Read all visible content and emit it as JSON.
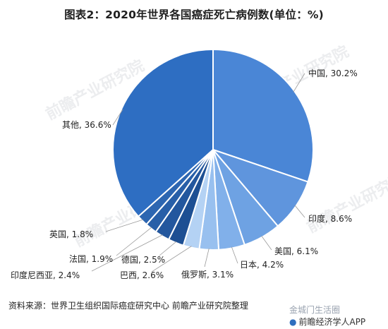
{
  "title": "图表2：2020年世界各国癌症死亡病例数(单位：%)",
  "source": "资料来源：世界卫生组织国际癌症研究中心 前瞻产业研究院整理",
  "watermark_text": "前瞻产业研究院",
  "bottom_watermark": "金城门生活圈",
  "app_label": "前瞻经济学人APP",
  "chart_data": {
    "type": "pie",
    "title": "图表2：2020年世界各国癌症死亡病例数(单位：%)",
    "slices": [
      {
        "label": "中国, 30.2%",
        "name": "中国",
        "value": 30.2,
        "color": "#4a86d6"
      },
      {
        "label": "印度, 8.6%",
        "name": "印度",
        "value": 8.6,
        "color": "#5f95dd"
      },
      {
        "label": "美国, 6.1%",
        "name": "美国",
        "value": 6.1,
        "color": "#6ea2e3"
      },
      {
        "label": "日本, 4.2%",
        "name": "日本",
        "value": 4.2,
        "color": "#81b0ea"
      },
      {
        "label": "俄罗斯, 3.1%",
        "name": "俄罗斯",
        "value": 3.1,
        "color": "#98c0ef"
      },
      {
        "label": "巴西, 2.6%",
        "name": "巴西",
        "value": 2.6,
        "color": "#b4d2f4"
      },
      {
        "label": "德国, 2.5%",
        "name": "德国",
        "value": 2.5,
        "color": "#1d4f93"
      },
      {
        "label": "印度尼西亚, 2.4%",
        "name": "印度尼西亚",
        "value": 2.4,
        "color": "#23579e"
      },
      {
        "label": "法国, 1.9%",
        "name": "法国",
        "value": 1.9,
        "color": "#285fa8"
      },
      {
        "label": "英国, 1.8%",
        "name": "英国",
        "value": 1.8,
        "color": "#2d66b1"
      },
      {
        "label": "其他, 36.6%",
        "name": "其他",
        "value": 36.6,
        "color": "#2e6ec2"
      }
    ]
  }
}
